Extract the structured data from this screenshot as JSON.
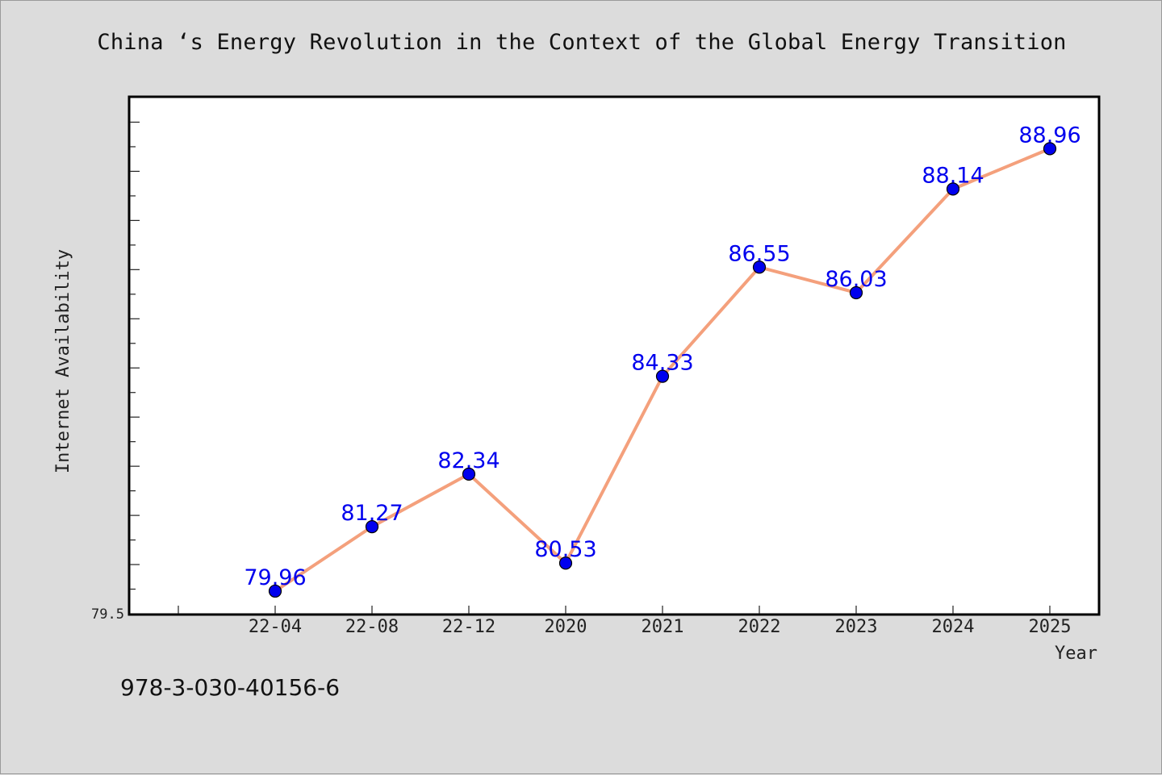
{
  "chart_data": {
    "type": "line",
    "title": "China ‘s Energy Revolution in the Context of the Global Energy Transition",
    "xlabel": "Year",
    "ylabel": "Internet Availability",
    "categories": [
      "22-04",
      "22-08",
      "22-12",
      "2020",
      "2021",
      "2022",
      "2023",
      "2024",
      "2025"
    ],
    "series": [
      {
        "values": [
          79.96,
          81.27,
          82.34,
          80.53,
          84.33,
          86.55,
          86.03,
          88.14,
          88.96
        ],
        "labels": [
          "79.96",
          "81.27",
          "82.34",
          "80.53",
          "84.33",
          "86.55",
          "86.03",
          "88.14",
          "88.96"
        ]
      }
    ],
    "ylim": [
      79.5,
      90.0
    ],
    "ytick_label": "79.5",
    "grid": false,
    "legend": "none",
    "colors": {
      "line": "#f4a07c",
      "marker": "#0000ee",
      "label": "#0000ee",
      "plot_bg": "#ffffff",
      "page_bg": "#dcdcdc"
    }
  },
  "footer": {
    "code": "978-3-030-40156-6"
  }
}
